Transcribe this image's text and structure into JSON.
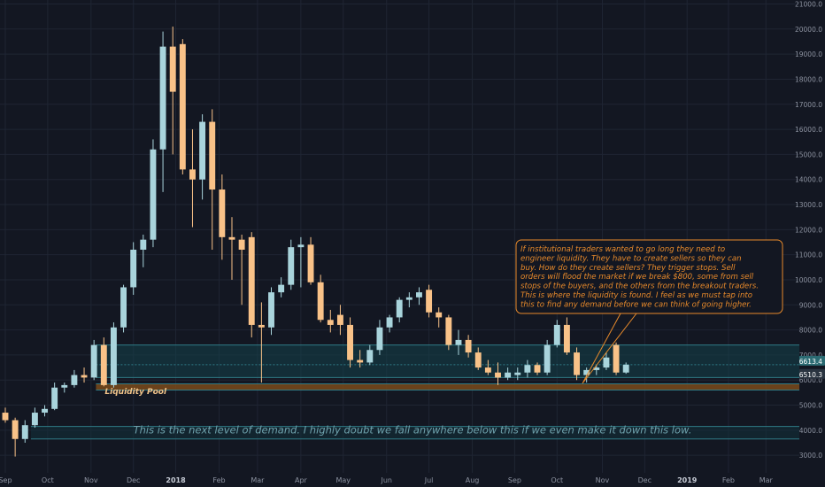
{
  "chart_data": {
    "type": "candlestick",
    "instrument": "BTCUSD",
    "timeframe": "1W",
    "y_ticks": [
      3000,
      4000,
      5000,
      6000,
      7000,
      8000,
      9000,
      10000,
      11000,
      12000,
      13000,
      14000,
      15000,
      16000,
      17000,
      18000,
      19000,
      20000,
      21000
    ],
    "y_tick_labels": [
      "3000.0",
      "4000.0",
      "5000.0",
      "6000.0",
      "7000.0",
      "8000.0",
      "9000.0",
      "10000.0",
      "11000.0",
      "12000.0",
      "13000.0",
      "14000.0",
      "15000.0",
      "16000.0",
      "17000.0",
      "18000.0",
      "19000.0",
      "20000.0",
      "21000.0"
    ],
    "ylim": [
      2300,
      21300
    ],
    "x_ticks": [
      {
        "label": "Sep",
        "week": 0
      },
      {
        "label": "Oct",
        "week": 4.3
      },
      {
        "label": "Nov",
        "week": 8.7
      },
      {
        "label": "Dec",
        "week": 13
      },
      {
        "label": "2018",
        "week": 17.3
      },
      {
        "label": "Feb",
        "week": 21.7
      },
      {
        "label": "Mar",
        "week": 25.6
      },
      {
        "label": "Apr",
        "week": 30
      },
      {
        "label": "May",
        "week": 34.3
      },
      {
        "label": "Jun",
        "week": 38.7
      },
      {
        "label": "Jul",
        "week": 43
      },
      {
        "label": "Aug",
        "week": 47.4
      },
      {
        "label": "Sep",
        "week": 51.7
      },
      {
        "label": "Oct",
        "week": 56
      },
      {
        "label": "Nov",
        "week": 60.6
      },
      {
        "label": "Dec",
        "week": 64.9
      },
      {
        "label": "2019",
        "week": 69.2
      },
      {
        "label": "Feb",
        "week": 73.4
      },
      {
        "label": "Mar",
        "week": 77.2
      }
    ],
    "candles": [
      {
        "w": 0,
        "o": 4700,
        "h": 4900,
        "l": 4300,
        "c": 4400
      },
      {
        "w": 1,
        "o": 4400,
        "h": 4500,
        "l": 2950,
        "c": 3650
      },
      {
        "w": 2,
        "o": 3650,
        "h": 4400,
        "l": 3500,
        "c": 4200
      },
      {
        "w": 3,
        "o": 4200,
        "h": 4900,
        "l": 4100,
        "c": 4700
      },
      {
        "w": 4,
        "o": 4700,
        "h": 5000,
        "l": 4550,
        "c": 4850
      },
      {
        "w": 5,
        "o": 4850,
        "h": 5900,
        "l": 4800,
        "c": 5700
      },
      {
        "w": 6,
        "o": 5700,
        "h": 5900,
        "l": 5500,
        "c": 5800
      },
      {
        "w": 7,
        "o": 5800,
        "h": 6400,
        "l": 5700,
        "c": 6200
      },
      {
        "w": 8,
        "o": 6200,
        "h": 6500,
        "l": 5900,
        "c": 6100
      },
      {
        "w": 9,
        "o": 6100,
        "h": 7600,
        "l": 6000,
        "c": 7400
      },
      {
        "w": 10,
        "o": 7400,
        "h": 7700,
        "l": 5750,
        "c": 5800
      },
      {
        "w": 11,
        "o": 5800,
        "h": 8300,
        "l": 5700,
        "c": 8100
      },
      {
        "w": 12,
        "o": 8100,
        "h": 9800,
        "l": 7900,
        "c": 9700
      },
      {
        "w": 13,
        "o": 9700,
        "h": 11500,
        "l": 9400,
        "c": 11200
      },
      {
        "w": 14,
        "o": 11200,
        "h": 11800,
        "l": 10500,
        "c": 11600
      },
      {
        "w": 15,
        "o": 11600,
        "h": 15600,
        "l": 11300,
        "c": 15200
      },
      {
        "w": 16,
        "o": 15200,
        "h": 19900,
        "l": 13500,
        "c": 19300
      },
      {
        "w": 17,
        "o": 19300,
        "h": 20100,
        "l": 15000,
        "c": 17500
      },
      {
        "w": 18,
        "o": 19400,
        "h": 19600,
        "l": 14200,
        "c": 14400
      },
      {
        "w": 19,
        "o": 14400,
        "h": 16000,
        "l": 12100,
        "c": 14000
      },
      {
        "w": 20,
        "o": 14000,
        "h": 16600,
        "l": 13200,
        "c": 16300
      },
      {
        "w": 21,
        "o": 16300,
        "h": 16800,
        "l": 11200,
        "c": 13600
      },
      {
        "w": 22,
        "o": 13600,
        "h": 14200,
        "l": 10800,
        "c": 11700
      },
      {
        "w": 23,
        "o": 11700,
        "h": 12500,
        "l": 10000,
        "c": 11600
      },
      {
        "w": 24,
        "o": 11600,
        "h": 11800,
        "l": 9000,
        "c": 11200
      },
      {
        "w": 25,
        "o": 11700,
        "h": 11900,
        "l": 7700,
        "c": 8200
      },
      {
        "w": 26,
        "o": 8200,
        "h": 9100,
        "l": 5900,
        "c": 8100
      },
      {
        "w": 27,
        "o": 8100,
        "h": 9700,
        "l": 7800,
        "c": 9500
      },
      {
        "w": 28,
        "o": 9500,
        "h": 10100,
        "l": 9300,
        "c": 9800
      },
      {
        "w": 29,
        "o": 9800,
        "h": 11600,
        "l": 9600,
        "c": 11300
      },
      {
        "w": 30,
        "o": 11300,
        "h": 11700,
        "l": 9700,
        "c": 11400
      },
      {
        "w": 31,
        "o": 11400,
        "h": 11700,
        "l": 9800,
        "c": 9900
      },
      {
        "w": 32,
        "o": 9900,
        "h": 10200,
        "l": 8300,
        "c": 8400
      },
      {
        "w": 33,
        "o": 8400,
        "h": 8800,
        "l": 7900,
        "c": 8200
      },
      {
        "w": 34,
        "o": 8600,
        "h": 9000,
        "l": 7800,
        "c": 8200
      },
      {
        "w": 35,
        "o": 8200,
        "h": 8500,
        "l": 6500,
        "c": 6800
      },
      {
        "w": 36,
        "o": 6800,
        "h": 7200,
        "l": 6500,
        "c": 6700
      },
      {
        "w": 37,
        "o": 6700,
        "h": 7400,
        "l": 6600,
        "c": 7200
      },
      {
        "w": 38,
        "o": 7200,
        "h": 8400,
        "l": 7000,
        "c": 8100
      },
      {
        "w": 39,
        "o": 8100,
        "h": 8600,
        "l": 7900,
        "c": 8500
      },
      {
        "w": 40,
        "o": 8500,
        "h": 9300,
        "l": 8300,
        "c": 9200
      },
      {
        "w": 41,
        "o": 9200,
        "h": 9500,
        "l": 8900,
        "c": 9300
      },
      {
        "w": 42,
        "o": 9300,
        "h": 9700,
        "l": 9000,
        "c": 9500
      },
      {
        "w": 43,
        "o": 9600,
        "h": 9800,
        "l": 8500,
        "c": 8700
      },
      {
        "w": 44,
        "o": 8700,
        "h": 8900,
        "l": 8100,
        "c": 8500
      },
      {
        "w": 45,
        "o": 8500,
        "h": 8600,
        "l": 7200,
        "c": 7400
      },
      {
        "w": 46,
        "o": 7400,
        "h": 8000,
        "l": 7000,
        "c": 7600
      },
      {
        "w": 47,
        "o": 7600,
        "h": 7800,
        "l": 6900,
        "c": 7100
      },
      {
        "w": 48,
        "o": 7100,
        "h": 7300,
        "l": 6400,
        "c": 6500
      },
      {
        "w": 49,
        "o": 6500,
        "h": 6800,
        "l": 6200,
        "c": 6300
      },
      {
        "w": 50,
        "o": 6300,
        "h": 6700,
        "l": 5800,
        "c": 6100
      },
      {
        "w": 51,
        "o": 6100,
        "h": 6500,
        "l": 6000,
        "c": 6300
      },
      {
        "w": 52,
        "o": 6200,
        "h": 6500,
        "l": 6000,
        "c": 6300
      },
      {
        "w": 53,
        "o": 6300,
        "h": 6800,
        "l": 6100,
        "c": 6600
      },
      {
        "w": 54,
        "o": 6600,
        "h": 6700,
        "l": 6200,
        "c": 6300
      },
      {
        "w": 55,
        "o": 6300,
        "h": 7600,
        "l": 6200,
        "c": 7400
      },
      {
        "w": 56,
        "o": 7400,
        "h": 8400,
        "l": 7300,
        "c": 8200
      },
      {
        "w": 57,
        "o": 8200,
        "h": 8500,
        "l": 7000,
        "c": 7100
      },
      {
        "w": 58,
        "o": 7100,
        "h": 7300,
        "l": 6000,
        "c": 6200
      },
      {
        "w": 59,
        "o": 6200,
        "h": 6500,
        "l": 5900,
        "c": 6400
      },
      {
        "w": 60,
        "o": 6400,
        "h": 6600,
        "l": 6200,
        "c": 6500
      },
      {
        "w": 61,
        "o": 6500,
        "h": 7100,
        "l": 6400,
        "c": 6900
      },
      {
        "w": 62,
        "o": 7400,
        "h": 7500,
        "l": 6200,
        "c": 6300
      },
      {
        "w": 63,
        "o": 6300,
        "h": 6700,
        "l": 6250,
        "c": 6613
      }
    ],
    "zones": [
      {
        "name": "upper-demand-zone",
        "y1": 6100,
        "y2": 7400,
        "color": "#14424a"
      },
      {
        "name": "liquidity-pool-zone",
        "y1": 5600,
        "y2": 5850,
        "color": "#7a4a1a"
      },
      {
        "name": "lower-demand-zone",
        "y1": 3650,
        "y2": 4150,
        "color": "#12323b"
      }
    ],
    "price_markers": [
      {
        "label": "6613.4",
        "value": 6613,
        "type": "last"
      },
      {
        "label": "6510.3",
        "value": 6510,
        "type": "ref"
      }
    ],
    "annotations": [
      {
        "name": "liquidity-pool-label",
        "text": "Liquidity Pool"
      },
      {
        "name": "next-demand-caption",
        "text": "This is the next level of demand. I highly doubt we fall anywhere below this if we even make it down this low."
      },
      {
        "name": "callout",
        "lines": [
          "If institutional traders wanted to go long they need to",
          "engineer liquidity. They have to create sellers so they can",
          "buy. How do they create sellers? They trigger stops. Sell",
          "orders will flood the market if we break $800, some from sell",
          "stops of the buyers, and the others from the breakout traders.",
          "This is where the liquidity is found. I feel as we must tap into",
          "this to find any demand before we can think of going higher."
        ]
      }
    ]
  },
  "colors": {
    "background": "#131722",
    "up": "#a9d4dc",
    "down": "#f9c288",
    "grid": "#1f2533",
    "axis_text": "#8d93a1",
    "callout_text": "#e88a2b",
    "callout_border": "#e88a2b",
    "caption_text": "#6fa2ad",
    "pool_text": "#f2c48a",
    "last_price_bg": "#2b6b73",
    "ref_price_bg": "#2a3440"
  }
}
